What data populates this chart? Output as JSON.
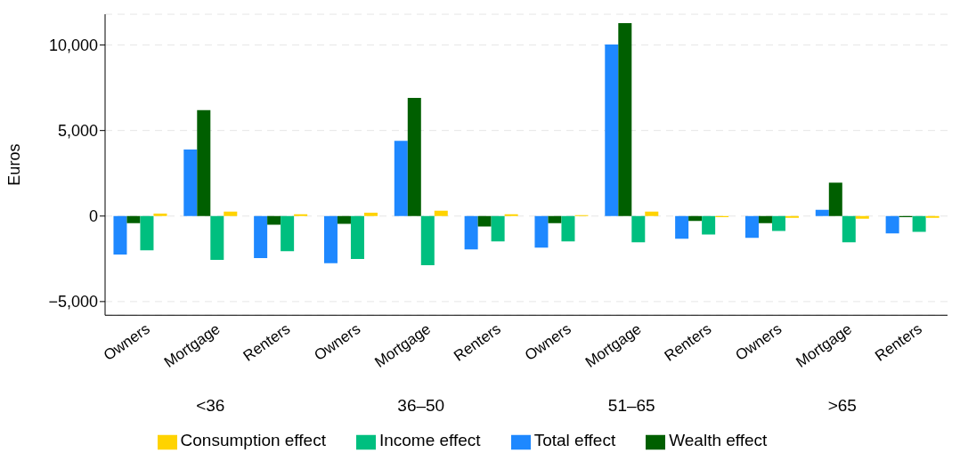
{
  "chart_data": {
    "type": "bar",
    "ylabel": "Euros",
    "categories": [
      "Owners",
      "Mortgage",
      "Renters",
      "Owners",
      "Mortgage",
      "Renters",
      "Owners",
      "Mortgage",
      "Renters",
      "Owners",
      "Mortgage",
      "Renters"
    ],
    "series": [
      {
        "name": "Total effect",
        "color": "#1e88ff",
        "values": [
          -2250,
          3890,
          -2460,
          -2760,
          4400,
          -1950,
          -1840,
          10030,
          -1330,
          -1280,
          360,
          -1020
        ]
      },
      {
        "name": "Wealth effect",
        "color": "#005f00",
        "values": [
          -410,
          6190,
          -510,
          -460,
          6910,
          -610,
          -410,
          11280,
          -290,
          -410,
          1950,
          -70
        ]
      },
      {
        "name": "Income effect",
        "color": "#00bf7f",
        "values": [
          -2000,
          -2560,
          -2050,
          -2510,
          -2870,
          -1480,
          -1480,
          -1540,
          -1080,
          -870,
          -1540,
          -920
        ]
      },
      {
        "name": "Consumption effect",
        "color": "#ffd300",
        "values": [
          150,
          260,
          100,
          200,
          310,
          100,
          50,
          260,
          -70,
          -100,
          -150,
          -100
        ]
      }
    ],
    "annotations": [
      "<36",
      "36–50",
      "51–65",
      ">65"
    ],
    "ylim": [
      -5800,
      11800
    ],
    "yticks": [
      {
        "value": -5000,
        "label": "−5,000"
      },
      {
        "value": 0,
        "label": "0"
      },
      {
        "value": 5000,
        "label": "5,000"
      },
      {
        "value": 10000,
        "label": "10,000"
      }
    ],
    "grid": "y",
    "legend": "bottom"
  }
}
